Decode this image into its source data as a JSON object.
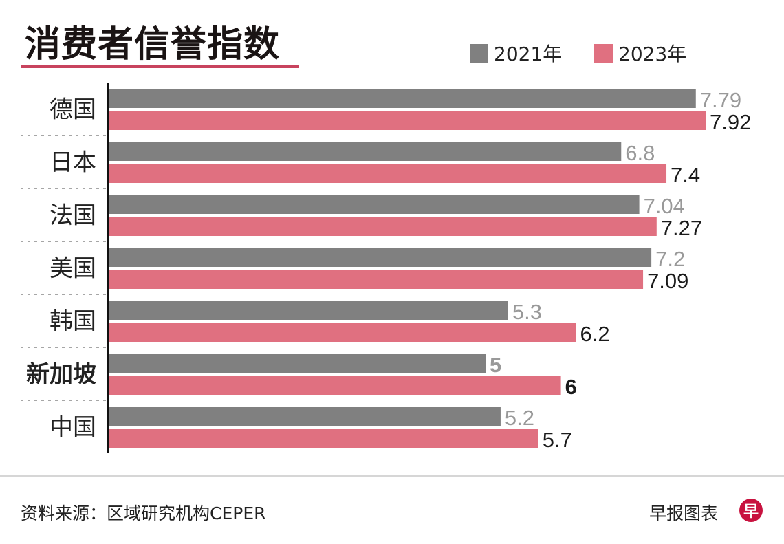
{
  "chart_data": {
    "type": "bar",
    "orientation": "horizontal",
    "title": "消费者信誉指数",
    "categories": [
      "德国",
      "日本",
      "法国",
      "美国",
      "韩国",
      "新加坡",
      "中国"
    ],
    "highlight_category": "新加坡",
    "series": [
      {
        "name": "2021年",
        "color": "#808080",
        "label_color": "#999999",
        "values": [
          7.79,
          6.8,
          7.04,
          7.2,
          5.3,
          5,
          5.2
        ],
        "labels": [
          "7.79",
          "6.8",
          "7.04",
          "7.2",
          "5.3",
          "5",
          "5.2"
        ]
      },
      {
        "name": "2023年",
        "color": "#e07080",
        "label_color": "#1a1a1a",
        "values": [
          7.92,
          7.4,
          7.27,
          7.09,
          6.2,
          6,
          5.7
        ],
        "labels": [
          "7.92",
          "7.4",
          "7.27",
          "7.09",
          "6.2",
          "6",
          "5.7"
        ]
      }
    ],
    "xlim": [
      0,
      8.6
    ],
    "grid": false,
    "legend_position": "top-right"
  },
  "footer": {
    "source": "资料来源：区域研究机构CEPER",
    "brand": "早报图表",
    "logo_text": "早"
  },
  "colors": {
    "accent": "#c8435e",
    "logo": "#c8123f"
  }
}
